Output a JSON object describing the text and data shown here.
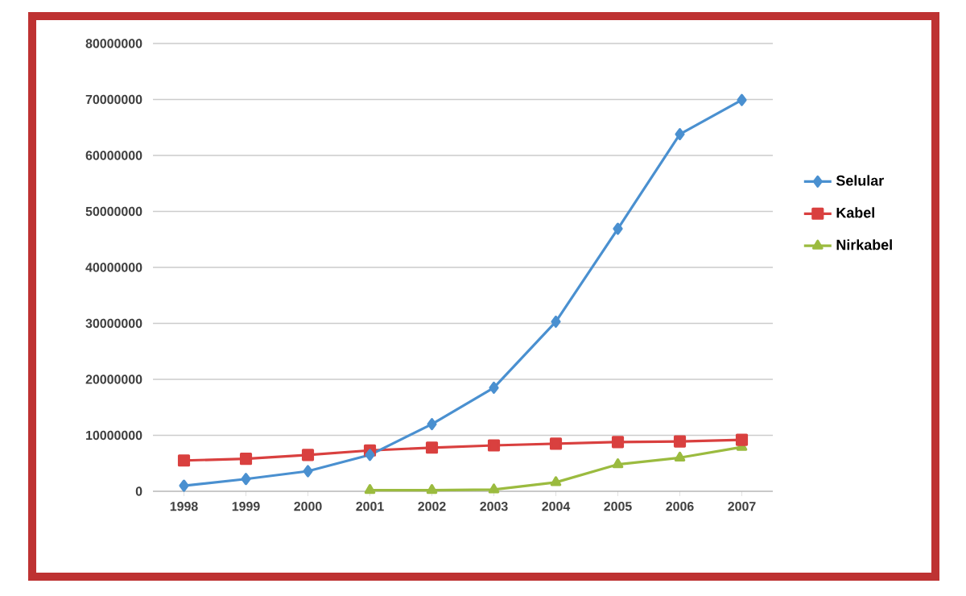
{
  "chart_data": {
    "type": "line",
    "categories": [
      "1998",
      "1999",
      "2000",
      "2001",
      "2002",
      "2003",
      "2004",
      "2005",
      "2006",
      "2007"
    ],
    "series": [
      {
        "name": "Selular",
        "color": "#4a90d0",
        "marker": "diamond",
        "values": [
          1000000,
          2200000,
          3600000,
          6500000,
          12000000,
          18500000,
          30300000,
          46900000,
          63800000,
          69900000
        ]
      },
      {
        "name": "Kabel",
        "color": "#d9403f",
        "marker": "square",
        "values": [
          5500000,
          5800000,
          6500000,
          7300000,
          7800000,
          8200000,
          8500000,
          8800000,
          8900000,
          9200000
        ]
      },
      {
        "name": "Nirkabel",
        "color": "#9bbb3f",
        "marker": "triangle",
        "values": [
          null,
          null,
          null,
          200000,
          200000,
          300000,
          1600000,
          4800000,
          6000000,
          7900000
        ]
      }
    ],
    "ylim": [
      0,
      80000000
    ],
    "yticks": [
      0,
      10000000,
      20000000,
      30000000,
      40000000,
      50000000,
      60000000,
      70000000,
      80000000
    ],
    "grid": "y",
    "legend": "right"
  }
}
